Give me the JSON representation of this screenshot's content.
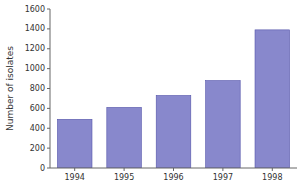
{
  "chart_data": {
    "type": "bar",
    "categories": [
      "1994",
      "1995",
      "1996",
      "1997",
      "1998"
    ],
    "values": [
      490,
      610,
      730,
      880,
      1390
    ],
    "color": "#8888cc",
    "ylabel": "Number of isolates",
    "ylim": [
      0,
      1600
    ],
    "yticks": [
      0,
      200,
      400,
      600,
      800,
      1000,
      1200,
      1400,
      1600
    ],
    "grid": false
  }
}
